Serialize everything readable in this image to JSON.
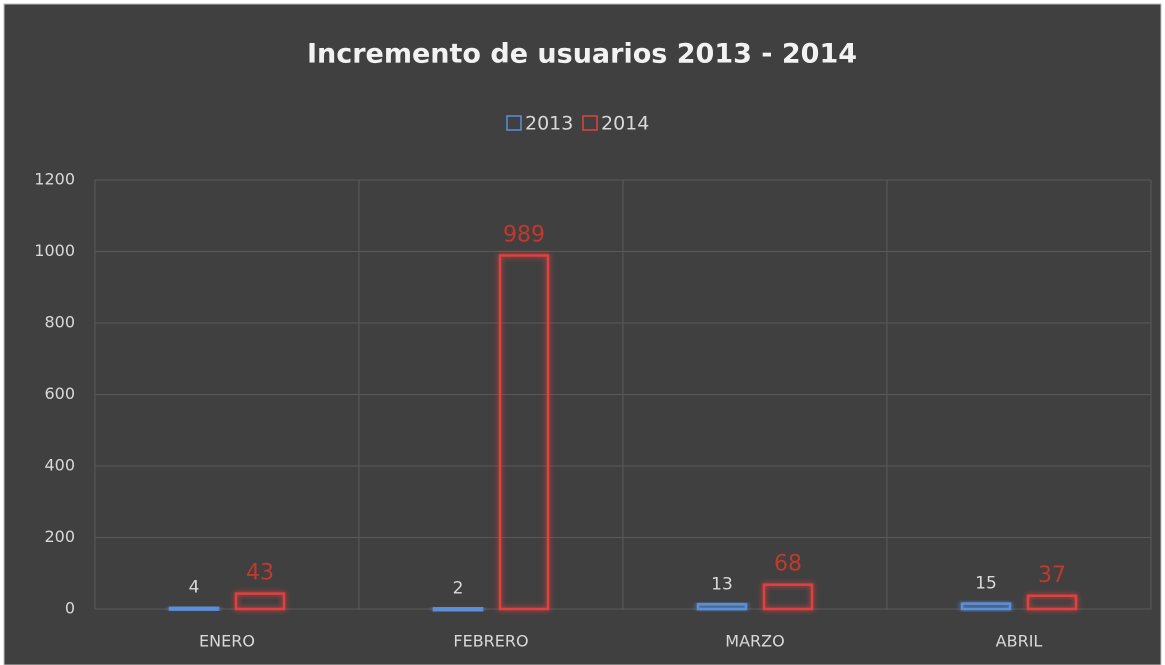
{
  "chart_data": {
    "type": "bar",
    "title": "Incremento de usuarios 2013 - 2014",
    "categories": [
      "ENERO",
      "FEBRERO",
      "MARZO",
      "ABRIL"
    ],
    "series": [
      {
        "name": "2013",
        "color": "#5b8fd9",
        "values": [
          4,
          2,
          13,
          15
        ]
      },
      {
        "name": "2014",
        "color": "#e0403f",
        "values": [
          43,
          989,
          68,
          37
        ]
      }
    ],
    "ylim": [
      0,
      1200
    ],
    "yticks": [
      0,
      200,
      400,
      600,
      800,
      1000,
      1200
    ],
    "grid": true,
    "legend": "top"
  }
}
